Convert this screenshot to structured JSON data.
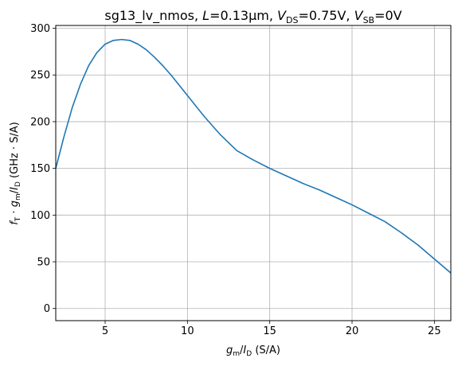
{
  "chart_data": {
    "type": "line",
    "title": {
      "prefix": "sg13_lv_nmos, ",
      "L_var": "L",
      "L_value": "=0.13µm, ",
      "VDS_var": "V",
      "VDS_sub": "DS",
      "VDS_value": "=0.75V, ",
      "VSB_var": "V",
      "VSB_sub": "SB",
      "VSB_value": "=0V"
    },
    "xlabel": {
      "g": "g",
      "m": "m",
      "slash": "/",
      "I": "I",
      "D": "D",
      "unit": " (S/A)"
    },
    "ylabel": {
      "f": "f",
      "T": "T",
      "dot": " · ",
      "g": "g",
      "m": "m",
      "slash": "/",
      "I": "I",
      "D": "D",
      "unit": " (GHz · S/A)"
    },
    "xlim": [
      2.0,
      26.0
    ],
    "ylim": [
      -13,
      303
    ],
    "xticks": [
      5,
      10,
      15,
      20,
      25
    ],
    "yticks": [
      0,
      50,
      100,
      150,
      200,
      250,
      300
    ],
    "grid": true,
    "line_color": "#1f77b4",
    "series": [
      {
        "x": [
          2.0,
          2.5,
          3.0,
          3.5,
          4.0,
          4.5,
          5.0,
          5.5,
          6.0,
          6.5,
          7.0,
          7.5,
          8.0,
          8.5,
          9.0,
          10.0,
          11.0,
          12.0,
          13.0,
          14.0,
          15.0,
          16.0,
          17.0,
          18.0,
          19.0,
          20.0,
          21.0,
          22.0,
          23.0,
          24.0,
          25.0,
          26.0
        ],
        "y": [
          150,
          184,
          215,
          240,
          260,
          274,
          283,
          287,
          288,
          287,
          283,
          277,
          269,
          260,
          250,
          228,
          206,
          186,
          169,
          159,
          150,
          142,
          134,
          127,
          119,
          111,
          102,
          93,
          81,
          68,
          53,
          38
        ]
      }
    ]
  }
}
